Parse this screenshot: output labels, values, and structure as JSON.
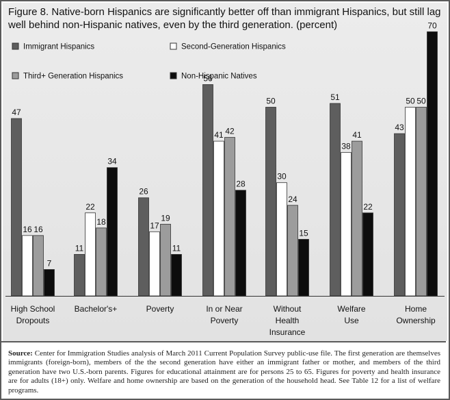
{
  "title": "Figure 8. Native-born Hispanics are significantly better off than immigrant Hispanics, but still lag well behind non-Hispanic natives, even by the third generation. (percent)",
  "source_label": "Source:",
  "source_text": " Center for Immigration Studies analysis of March 2011 Current Population Survey public-use file. The first generation are themselves immigrants (foreign-born), members of the the second generation have either an immigrant father or mother, and members of the third generation have two U.S.-born parents. Figures for educational attainment are for persons 25 to 65. Figures for poverty and health insurance are for adults (18+) only. Welfare and home ownership are based on the generation of the household head. See Table 12 for a list of welfare programs.",
  "colors": {
    "immigrant": "#5e5e5e",
    "second": "#ffffff",
    "third": "#9c9c9c",
    "native": "#0d0d0d"
  },
  "chart_data": {
    "type": "bar",
    "categories": [
      [
        "High School",
        "Dropouts"
      ],
      [
        "Bachelor's+"
      ],
      [
        "Poverty"
      ],
      [
        "In or Near",
        "Poverty"
      ],
      [
        "Without",
        "Health",
        "Insurance"
      ],
      [
        "Welfare",
        "Use"
      ],
      [
        "Home",
        "Ownership"
      ]
    ],
    "series": [
      {
        "name": "Immigrant Hispanics",
        "color_key": "immigrant",
        "values": [
          47,
          11,
          26,
          56,
          50,
          51,
          43
        ]
      },
      {
        "name": "Second-Generation Hispanics",
        "color_key": "second",
        "values": [
          16,
          22,
          17,
          41,
          30,
          38,
          50
        ]
      },
      {
        "name": "Third+ Generation Hispanics",
        "color_key": "third",
        "values": [
          16,
          18,
          19,
          42,
          24,
          41,
          50
        ]
      },
      {
        "name": "Non-Hispanic Natives",
        "color_key": "native",
        "values": [
          7,
          34,
          11,
          28,
          15,
          22,
          70
        ]
      }
    ],
    "ylim": [
      0,
      70
    ],
    "legend_position": "top-left, two columns",
    "grid": false
  }
}
